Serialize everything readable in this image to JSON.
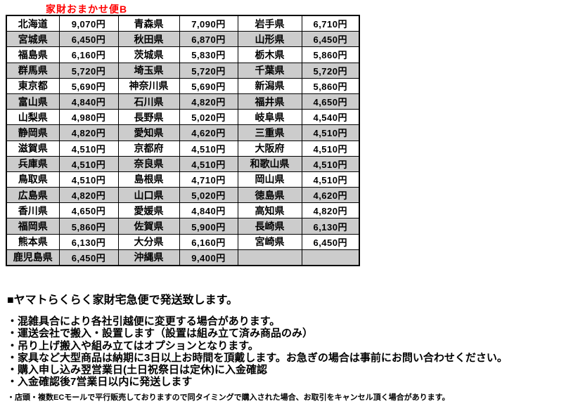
{
  "title": "家財おまかせ便B",
  "colors": {
    "title_red": "#ff0000",
    "row_shade_gray": "#cccccc",
    "border_black": "#000000"
  },
  "table": {
    "columns": [
      "prefecture",
      "price",
      "prefecture",
      "price",
      "prefecture",
      "price"
    ],
    "rows": [
      [
        {
          "pref": "北海道",
          "price": "9,070円"
        },
        {
          "pref": "青森県",
          "price": "7,090円"
        },
        {
          "pref": "岩手県",
          "price": "6,710円"
        }
      ],
      [
        {
          "pref": "宮城県",
          "price": "6,450円"
        },
        {
          "pref": "秋田県",
          "price": "6,870円"
        },
        {
          "pref": "山形県",
          "price": "6,450円"
        }
      ],
      [
        {
          "pref": "福島県",
          "price": "6,160円"
        },
        {
          "pref": "茨城県",
          "price": "5,830円"
        },
        {
          "pref": "栃木県",
          "price": "5,860円"
        }
      ],
      [
        {
          "pref": "群馬県",
          "price": "5,720円"
        },
        {
          "pref": "埼玉県",
          "price": "5,720円"
        },
        {
          "pref": "千葉県",
          "price": "5,720円"
        }
      ],
      [
        {
          "pref": "東京都",
          "price": "5,690円"
        },
        {
          "pref": "神奈川県",
          "price": "5,690円"
        },
        {
          "pref": "新潟県",
          "price": "5,860円"
        }
      ],
      [
        {
          "pref": "富山県",
          "price": "4,840円"
        },
        {
          "pref": "石川県",
          "price": "4,820円"
        },
        {
          "pref": "福井県",
          "price": "4,650円"
        }
      ],
      [
        {
          "pref": "山梨県",
          "price": "4,980円"
        },
        {
          "pref": "長野県",
          "price": "5,020円"
        },
        {
          "pref": "岐阜県",
          "price": "4,540円"
        }
      ],
      [
        {
          "pref": "静岡県",
          "price": "4,820円"
        },
        {
          "pref": "愛知県",
          "price": "4,620円"
        },
        {
          "pref": "三重県",
          "price": "4,510円"
        }
      ],
      [
        {
          "pref": "滋賀県",
          "price": "4,510円"
        },
        {
          "pref": "京都府",
          "price": "4,510円"
        },
        {
          "pref": "大阪府",
          "price": "4,510円"
        }
      ],
      [
        {
          "pref": "兵庫県",
          "price": "4,510円"
        },
        {
          "pref": "奈良県",
          "price": "4,510円"
        },
        {
          "pref": "和歌山県",
          "price": "4,510円"
        }
      ],
      [
        {
          "pref": "鳥取県",
          "price": "4,510円"
        },
        {
          "pref": "島根県",
          "price": "4,710円"
        },
        {
          "pref": "岡山県",
          "price": "4,510円"
        }
      ],
      [
        {
          "pref": "広島県",
          "price": "4,820円"
        },
        {
          "pref": "山口県",
          "price": "5,020円"
        },
        {
          "pref": "徳島県",
          "price": "4,620円"
        }
      ],
      [
        {
          "pref": "香川県",
          "price": "4,650円"
        },
        {
          "pref": "愛媛県",
          "price": "4,840円"
        },
        {
          "pref": "高知県",
          "price": "4,820円"
        }
      ],
      [
        {
          "pref": "福岡県",
          "price": "5,860円"
        },
        {
          "pref": "佐賀県",
          "price": "5,900円"
        },
        {
          "pref": "長崎県",
          "price": "6,130円"
        }
      ],
      [
        {
          "pref": "熊本県",
          "price": "6,130円"
        },
        {
          "pref": "大分県",
          "price": "6,160円"
        },
        {
          "pref": "宮崎県",
          "price": "6,450円"
        }
      ],
      [
        {
          "pref": "鹿児島県",
          "price": "6,450円"
        },
        {
          "pref": "沖縄県",
          "price": "9,400円"
        },
        {
          "pref": "",
          "price": ""
        }
      ]
    ]
  },
  "notes": {
    "heading": "■ヤマトらくらく家財宅急便で発送致します。",
    "bullets": [
      "・混雑具合により各社引越便に変更する場合があります。",
      "・運送会社で搬入・設置します（設置は組み立て済み商品のみ）",
      "・吊り上げ搬入や組み立てはオプションとなります。",
      "・家具など大型商品は納期に3日以上お時間を頂戴します。お急ぎの場合は事前にお問い合わせください。",
      "・購入申し込み翌営業日(土日祝祭日は定休)に入金確認",
      "・入金確認後7営業日以内に発送します"
    ],
    "fine_print": "・店頭・複数ECモールで平行販売しておりますので同タイミングで購入された場合、お取引をキャンセル頂く場合があります。"
  }
}
